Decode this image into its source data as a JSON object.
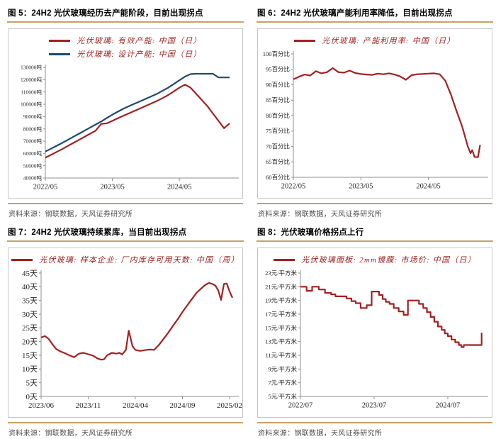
{
  "colors": {
    "red": "#A32020",
    "blue": "#1B4A72",
    "legend_text": "#9E2121",
    "gold_rule": "#C7A265",
    "box_border": "#C6C6C6",
    "axis": "#8F8F8F",
    "tick_text": "#262626",
    "source_text": "#4D4D4D"
  },
  "charts": [
    {
      "title": "图 5：24H2 光伏玻璃经历去产能阶段，目前出现拐点",
      "source": "资料来源：钢联数据，天风证券研究所",
      "legend": [
        {
          "label": "光伏玻璃: 有效产能: 中国（日）",
          "color": "red"
        },
        {
          "label": "光伏玻璃: 设计产能: 中国（日）",
          "color": "blue"
        }
      ],
      "chart_data": {
        "type": "line",
        "legend_position": "top",
        "xlim": [
          0,
          34
        ],
        "xticks": [
          {
            "x": 0,
            "label": "2022/05"
          },
          {
            "x": 12,
            "label": "2023/05"
          },
          {
            "x": 24,
            "label": "2024/05"
          }
        ],
        "ylim": [
          40000,
          130000
        ],
        "ystep": 10000,
        "y_suffix": "吨",
        "series": [
          {
            "name": "光伏玻璃: 有效产能: 中国（日）",
            "color": "red",
            "y": [
              56500,
              58800,
              61200,
              63500,
              66000,
              68500,
              71000,
              73500,
              76000,
              78500,
              84000,
              84500,
              86500,
              88700,
              90700,
              92700,
              94700,
              96700,
              98700,
              100700,
              102700,
              105000,
              107500,
              110500,
              113500,
              116000,
              113500,
              108500,
              103500,
              98500,
              92500,
              86500,
              80500,
              84500
            ]
          },
          {
            "name": "光伏玻璃: 设计产能: 中国（日）",
            "color": "blue",
            "y": [
              61500,
              63800,
              66200,
              68500,
              71000,
              73500,
              76000,
              78500,
              81000,
              83500,
              86000,
              88800,
              91500,
              94000,
              96500,
              98500,
              100500,
              102500,
              104500,
              106500,
              108500,
              111000,
              113500,
              116500,
              119500,
              122500,
              124500,
              124800,
              124800,
              124800,
              124800,
              121800,
              121800,
              121800
            ]
          }
        ]
      }
    },
    {
      "title": "图 6：24H2 光伏玻璃产能利用率降低，目前出现拐点",
      "source": "资料来源：钢联数据，天风证券研究所",
      "legend": [
        {
          "label": "光伏玻璃: 产能利用率: 中国（日）",
          "color": "red"
        }
      ],
      "chart_data": {
        "type": "line",
        "legend_position": "top",
        "xlim": [
          0,
          34
        ],
        "xticks": [
          {
            "x": 0,
            "label": "2022/05"
          },
          {
            "x": 12,
            "label": "2023/05"
          },
          {
            "x": 24,
            "label": "2024/05"
          }
        ],
        "ylim": [
          60,
          100
        ],
        "ystep": 5,
        "y_suffix": "百分比",
        "series": [
          {
            "name": "光伏玻璃: 产能利用率: 中国（日）",
            "color": "red",
            "x": [
              0,
              1,
              2,
              3,
              4,
              5,
              6,
              7,
              8,
              9,
              10,
              11,
              12,
              13,
              14,
              15,
              16,
              17,
              18,
              19,
              20,
              21,
              22,
              23,
              24,
              25,
              26,
              27,
              28,
              29,
              30,
              31,
              31.5,
              31.8,
              32.2,
              32.8,
              33.2
            ],
            "y": [
              91.8,
              92.6,
              93.3,
              93.0,
              94.4,
              93.7,
              94.1,
              95.4,
              94.1,
              93.9,
              94.6,
              93.8,
              93.5,
              93.3,
              93.2,
              93.6,
              93.4,
              93.7,
              93.3,
              92.7,
              91.6,
              93.1,
              93.4,
              93.5,
              93.6,
              93.7,
              93.4,
              91.3,
              86.8,
              81.5,
              76.5,
              70.0,
              67.8,
              68.8,
              66.6,
              66.5,
              70.5
            ]
          }
        ]
      }
    },
    {
      "title": "图 7：24H2 光伏玻璃持续累库，当目前出现拐点",
      "source": "资料来源：钢联数据，天风证券研究所",
      "legend": [
        {
          "label": "光伏玻璃: 样本企业: 厂内库存可用天数: 中国（周）",
          "color": "red"
        }
      ],
      "chart_data": {
        "type": "line",
        "legend_position": "top",
        "xlim": [
          0,
          20.6
        ],
        "xticks": [
          {
            "x": 0,
            "label": "2023/06"
          },
          {
            "x": 5,
            "label": "2023/11"
          },
          {
            "x": 10,
            "label": "2024/04"
          },
          {
            "x": 15,
            "label": "2024/09"
          },
          {
            "x": 20,
            "label": "2025/02"
          }
        ],
        "ylim": [
          0,
          45
        ],
        "ystep": 5,
        "y_suffix": "天",
        "series": [
          {
            "name": "光伏玻璃: 样本企业: 厂内库存可用天数: 中国（周）",
            "color": "red",
            "x": [
              0,
              0.4,
              0.8,
              1.2,
              1.6,
              2,
              2.5,
              3,
              3.5,
              4,
              4.5,
              5,
              5.5,
              6,
              6.4,
              6.7,
              7,
              7.5,
              8,
              8.3,
              8.6,
              9,
              9.3,
              9.7,
              10,
              10.5,
              11,
              11.5,
              12,
              12.5,
              13,
              13.5,
              14,
              14.5,
              15,
              15.5,
              16,
              16.5,
              17,
              17.4,
              17.8,
              18.2,
              18.5,
              18.8,
              19.1,
              19.4,
              19.7,
              20,
              20.3
            ],
            "y": [
              21.5,
              22.0,
              21.0,
              19.0,
              17.3,
              16.5,
              15.8,
              15.0,
              14.3,
              15.6,
              15.9,
              15.4,
              14.9,
              13.8,
              13.4,
              13.6,
              15.0,
              15.9,
              15.6,
              15.9,
              15.3,
              17.0,
              24.0,
              18.3,
              17.0,
              16.6,
              16.9,
              17.1,
              17.0,
              18.8,
              21.0,
              23.3,
              25.8,
              28.2,
              30.8,
              33.2,
              35.5,
              37.8,
              39.4,
              40.6,
              41.4,
              41.0,
              40.4,
              38.6,
              35.2,
              41.0,
              41.2,
              38.3,
              36.0
            ]
          }
        ]
      }
    },
    {
      "title": "图 8：光伏玻璃价格拐点上行",
      "source": "资料来源：钢联数据，天风证券研究所",
      "legend": [
        {
          "label": "光伏玻璃面板: 2mm镀膜: 市场价: 中国（日）",
          "color": "red"
        }
      ],
      "chart_data": {
        "type": "step-line",
        "step": true,
        "legend_position": "top",
        "xlim": [
          0,
          30
        ],
        "xticks": [
          {
            "x": 0,
            "label": "2022/07"
          },
          {
            "x": 12,
            "label": "2023/07"
          },
          {
            "x": 24,
            "label": "2024/07"
          }
        ],
        "ylim": [
          5,
          23
        ],
        "ystep": 2,
        "y_suffix": "元/平方米",
        "series": [
          {
            "name": "光伏玻璃面板: 2mm镀膜: 市场价: 中国（日）",
            "color": "red",
            "x": [
              0,
              1,
              1.9,
              3,
              4,
              5,
              5.7,
              7.5,
              8.3,
              9,
              9.8,
              10.8,
              11.6,
              12.8,
              13.4,
              13.9,
              14.5,
              15.2,
              16,
              16.8,
              17.5,
              19.3,
              20,
              20.6,
              21.2,
              21.8,
              22.4,
              23,
              23.5,
              24,
              24.6,
              25.2,
              25.8,
              26.2,
              26.6,
              29.2,
              29.5
            ],
            "y": [
              21.0,
              20.4,
              21.0,
              20.6,
              20.1,
              19.9,
              19.6,
              19.3,
              18.9,
              18.6,
              17.9,
              18.3,
              20.3,
              19.8,
              19.2,
              18.8,
              18.5,
              17.9,
              17.4,
              16.9,
              19.0,
              18.5,
              17.9,
              17.3,
              16.6,
              15.9,
              15.2,
              14.7,
              14.2,
              13.8,
              13.3,
              12.9,
              12.5,
              12.2,
              12.5,
              12.5,
              14.3
            ]
          }
        ]
      }
    }
  ]
}
